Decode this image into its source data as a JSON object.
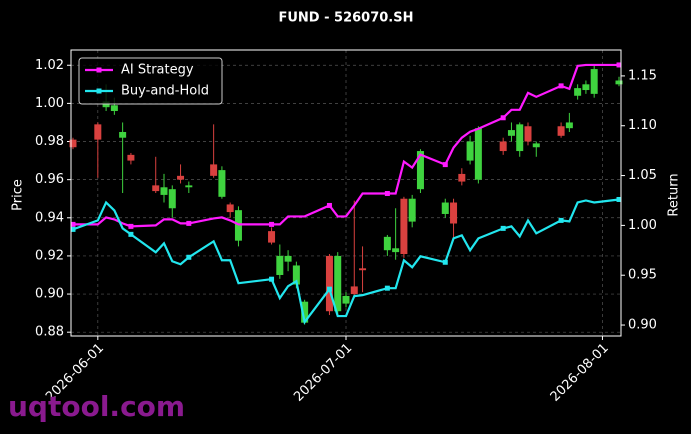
{
  "chart_data": {
    "type": "candlestick",
    "title": "FUND - 526070.SH",
    "ylabel": "Price",
    "y2label": "Return",
    "watermark": "uqtool.com",
    "x": [
      "2026-05-29",
      "2026-06-01",
      "2026-06-02",
      "2026-06-03",
      "2026-06-04",
      "2026-06-05",
      "2026-06-08",
      "2026-06-09",
      "2026-06-10",
      "2026-06-11",
      "2026-06-12",
      "2026-06-15",
      "2026-06-16",
      "2026-06-17",
      "2026-06-18",
      "2026-06-22",
      "2026-06-23",
      "2026-06-24",
      "2026-06-25",
      "2026-06-26",
      "2026-06-29",
      "2026-06-30",
      "2026-07-01",
      "2026-07-02",
      "2026-07-03",
      "2026-07-06",
      "2026-07-07",
      "2026-07-08",
      "2026-07-09",
      "2026-07-10",
      "2026-07-13",
      "2026-07-14",
      "2026-07-15",
      "2026-07-16",
      "2026-07-17",
      "2026-07-20",
      "2026-07-21",
      "2026-07-22",
      "2026-07-23",
      "2026-07-24",
      "2026-07-27",
      "2026-07-28",
      "2026-07-29",
      "2026-07-30",
      "2026-07-31",
      "2026-08-03"
    ],
    "open": [
      0.981,
      0.989,
      0.998,
      0.996,
      0.982,
      0.973,
      0.957,
      0.952,
      0.945,
      0.962,
      0.956,
      0.968,
      0.951,
      0.947,
      0.928,
      0.933,
      0.91,
      0.917,
      0.905,
      0.885,
      0.92,
      0.891,
      0.895,
      0.904,
      0.9135,
      0.923,
      0.922,
      0.95,
      0.938,
      0.955,
      0.942,
      0.948,
      0.963,
      0.97,
      0.96,
      0.98,
      0.983,
      0.975,
      0.988,
      0.977,
      0.988,
      0.987,
      1.004,
      1.007,
      1.005,
      1.01
    ],
    "close": [
      0.977,
      0.981,
      1.001,
      0.999,
      0.985,
      0.97,
      0.954,
      0.956,
      0.955,
      0.96,
      0.957,
      0.962,
      0.965,
      0.943,
      0.944,
      0.927,
      0.92,
      0.92,
      0.915,
      0.896,
      0.891,
      0.92,
      0.899,
      0.9,
      0.9125,
      0.93,
      0.924,
      0.921,
      0.95,
      0.975,
      0.948,
      0.937,
      0.959,
      0.98,
      0.987,
      0.975,
      0.986,
      0.989,
      0.98,
      0.979,
      0.983,
      0.99,
      1.008,
      1.01,
      1.018,
      1.012
    ],
    "high": [
      0.982,
      0.99,
      1.01,
      1.003,
      0.99,
      0.974,
      0.972,
      0.963,
      0.957,
      0.968,
      0.959,
      0.989,
      0.967,
      0.948,
      0.946,
      0.935,
      0.926,
      0.923,
      0.917,
      0.897,
      0.921,
      0.922,
      0.901,
      0.949,
      0.925,
      0.931,
      0.945,
      0.951,
      0.952,
      0.976,
      0.95,
      0.95,
      0.966,
      0.983,
      0.988,
      0.982,
      0.99,
      0.99,
      0.99,
      0.98,
      0.99,
      0.995,
      1.01,
      1.012,
      1.02,
      1.014
    ],
    "low": [
      0.976,
      0.961,
      0.996,
      0.994,
      0.953,
      0.968,
      0.953,
      0.948,
      0.94,
      0.958,
      0.953,
      0.961,
      0.95,
      0.94,
      0.925,
      0.926,
      0.908,
      0.912,
      0.903,
      0.884,
      0.889,
      0.889,
      0.893,
      0.898,
      0.901,
      0.92,
      0.918,
      0.919,
      0.935,
      0.953,
      0.94,
      0.928,
      0.957,
      0.968,
      0.958,
      0.973,
      0.98,
      0.972,
      0.978,
      0.972,
      0.982,
      0.985,
      1.002,
      1.005,
      1.003,
      1.009
    ],
    "up_color": "#3fd33f",
    "down_color": "#d9413f",
    "series": [
      {
        "name": "AI Strategy",
        "color": "#ff1aff",
        "axis": "y2",
        "values": [
          1.001,
          1.001,
          1.008,
          1.006,
          1.002,
          0.999,
          1.0,
          1.006,
          1.006,
          1.002,
          1.002,
          1.007,
          1.008,
          1.005,
          1.001,
          1.001,
          1.001,
          1.009,
          1.009,
          1.009,
          1.02,
          1.009,
          1.009,
          1.02,
          1.032,
          1.032,
          1.032,
          1.064,
          1.058,
          1.071,
          1.061,
          1.078,
          1.088,
          1.094,
          1.097,
          1.108,
          1.116,
          1.116,
          1.133,
          1.129,
          1.14,
          1.137,
          1.16,
          1.161,
          1.161,
          1.161
        ]
      },
      {
        "name": "Buy-and-Hold",
        "color": "#22e6ee",
        "axis": "y2",
        "values": [
          0.996,
          1.005,
          1.023,
          1.015,
          0.997,
          0.991,
          0.973,
          0.982,
          0.964,
          0.961,
          0.968,
          0.984,
          0.965,
          0.965,
          0.942,
          0.946,
          0.927,
          0.939,
          0.944,
          0.903,
          0.936,
          0.909,
          0.909,
          0.929,
          0.93,
          0.937,
          0.937,
          0.965,
          0.958,
          0.969,
          0.963,
          0.987,
          0.99,
          0.975,
          0.987,
          0.997,
          0.999,
          0.989,
          1.005,
          0.992,
          1.005,
          1.004,
          1.023,
          1.025,
          1.023,
          1.026
        ]
      }
    ],
    "xlim": [
      "2026-05-29",
      "2026-08-03"
    ],
    "xticks": [
      "2026-06-01",
      "2026-07-01",
      "2026-08-01"
    ],
    "ylim": [
      0.878,
      1.028
    ],
    "yticks": [
      0.88,
      {
        "value": 0.9,
        "label": "0.90"
      },
      0.92,
      0.94,
      0.96,
      0.98,
      {
        "value": 1.0,
        "label": "1.00"
      },
      1.02
    ],
    "y2lim": [
      0.889,
      1.176
    ],
    "y2ticks": [
      {
        "value": 0.9,
        "label": "0.90"
      },
      0.95,
      {
        "value": 1.0,
        "label": "1.00"
      },
      1.05,
      {
        "value": 1.1,
        "label": "1.10"
      },
      1.15
    ],
    "grid": true,
    "legend": "upper left"
  }
}
